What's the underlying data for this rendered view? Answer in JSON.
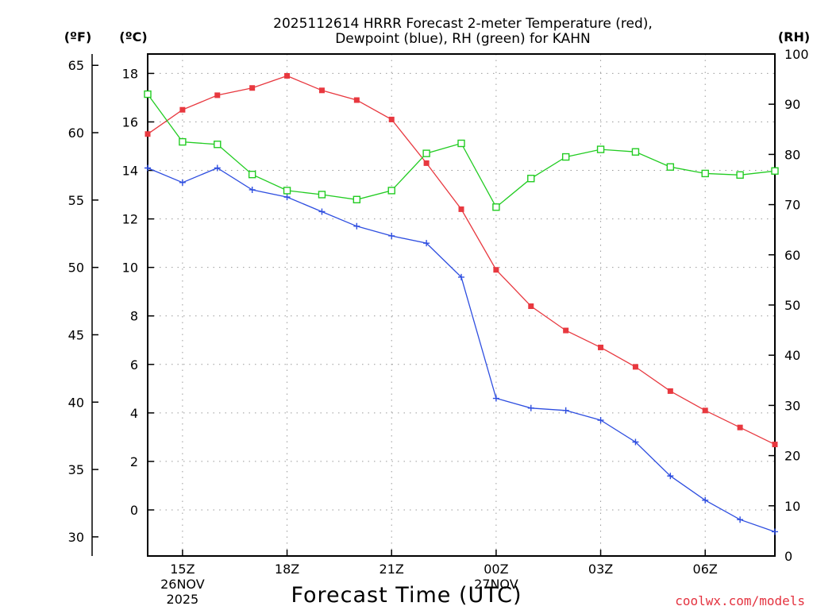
{
  "chart_data": {
    "type": "line",
    "title_line1": "2025112614 HRRR Forecast 2-meter Temperature (red),",
    "title_line2": "Dewpoint (blue), RH (green) for KAHN",
    "unit_f": "(ºF)",
    "unit_c": "(ºC)",
    "unit_rh": "(RH)",
    "xlabel": "Forecast Time (UTC)",
    "credit": "coolwx.com/models",
    "colors": {
      "temperature": "#e8383f",
      "dewpoint": "#2e4ee0",
      "rh": "#22cc22",
      "grid": "#9a9a9a"
    },
    "x_hours": [
      14,
      15,
      16,
      17,
      18,
      19,
      20,
      21,
      22,
      23,
      24,
      25,
      26,
      27,
      28,
      29,
      30,
      31,
      32
    ],
    "x_range": [
      14,
      32
    ],
    "x_ticks": [
      {
        "hour": 15,
        "label": "15Z",
        "sub1": "26NOV",
        "sub2": "2025"
      },
      {
        "hour": 18,
        "label": "18Z",
        "sub1": "",
        "sub2": ""
      },
      {
        "hour": 21,
        "label": "21Z",
        "sub1": "",
        "sub2": ""
      },
      {
        "hour": 24,
        "label": "00Z",
        "sub1": "27NOV",
        "sub2": ""
      },
      {
        "hour": 27,
        "label": "03Z",
        "sub1": "",
        "sub2": ""
      },
      {
        "hour": 30,
        "label": "06Z",
        "sub1": "",
        "sub2": ""
      }
    ],
    "y_c_range": [
      -1.9,
      18.8
    ],
    "y_c_ticks": [
      0,
      2,
      4,
      6,
      8,
      10,
      12,
      14,
      16,
      18
    ],
    "y_f_ticks": [
      30,
      35,
      40,
      45,
      50,
      55,
      60,
      65
    ],
    "y_rh_range": [
      0,
      100
    ],
    "y_rh_ticks": [
      0,
      10,
      20,
      30,
      40,
      50,
      60,
      70,
      80,
      90,
      100
    ],
    "series": [
      {
        "name": "Temperature",
        "axis": "c",
        "marker": "filled-square",
        "values": [
          15.5,
          16.5,
          17.1,
          17.4,
          17.9,
          17.3,
          16.9,
          16.1,
          14.3,
          12.4,
          9.9,
          8.4,
          7.4,
          6.7,
          5.9,
          4.9,
          4.1,
          3.4,
          2.7
        ]
      },
      {
        "name": "Dewpoint",
        "axis": "c",
        "marker": "plus",
        "values": [
          14.1,
          13.5,
          14.1,
          13.2,
          12.9,
          12.3,
          11.7,
          11.3,
          11.0,
          9.6,
          4.6,
          4.2,
          4.1,
          3.7,
          2.8,
          1.4,
          0.4,
          -0.4,
          -0.9
        ]
      },
      {
        "name": "RH",
        "axis": "rh",
        "marker": "open-square",
        "values": [
          92,
          82.5,
          82,
          76,
          72.8,
          72,
          71,
          72.8,
          80.2,
          82.2,
          69.5,
          75.2,
          79.5,
          81,
          80.5,
          77.5,
          76.2,
          75.9,
          76.7
        ]
      }
    ]
  }
}
